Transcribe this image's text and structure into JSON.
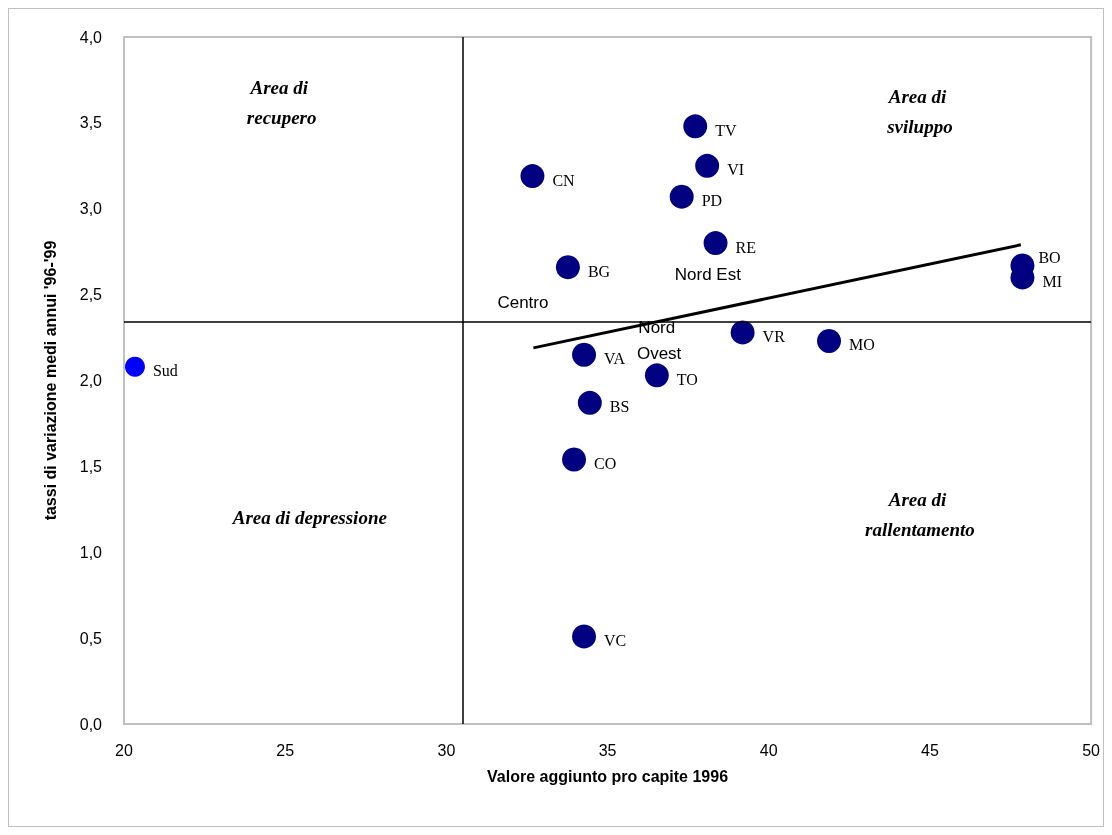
{
  "chart_data": {
    "type": "scatter",
    "xlabel": "Valore aggiunto pro capite 1996",
    "ylabel": "tassi di variazione medi annui '96-'99",
    "xlim": [
      20,
      50
    ],
    "xticks": [
      20,
      25,
      30,
      35,
      40,
      45,
      50
    ],
    "ylim": [
      0,
      4
    ],
    "yticks": [
      {
        "value": 0,
        "label": "0,0"
      },
      {
        "value": 0.5,
        "label": "0,5"
      },
      {
        "value": 1,
        "label": "1,0"
      },
      {
        "value": 1.5,
        "label": "1,5"
      },
      {
        "value": 2,
        "label": "2,0"
      },
      {
        "value": 2.5,
        "label": "2,5"
      },
      {
        "value": 3,
        "label": "3,0"
      },
      {
        "value": 3.5,
        "label": "3,5"
      },
      {
        "value": 4,
        "label": "4,0"
      }
    ],
    "grid": false,
    "legend": false,
    "marker": "circle",
    "series": [
      {
        "name": "TV",
        "color": "#000080",
        "x": [
          37.72
        ],
        "values": [
          3.48
        ]
      },
      {
        "name": "VI",
        "color": "#000080",
        "x": [
          38.09
        ],
        "values": [
          3.25
        ]
      },
      {
        "name": "CN",
        "color": "#000080",
        "x": [
          32.67
        ],
        "values": [
          3.19
        ]
      },
      {
        "name": "PD",
        "color": "#000080",
        "x": [
          37.3
        ],
        "values": [
          3.07
        ]
      },
      {
        "name": "RE",
        "color": "#000080",
        "x": [
          38.35
        ],
        "values": [
          2.8
        ]
      },
      {
        "name": "BG",
        "color": "#000080",
        "x": [
          33.77
        ],
        "values": [
          2.66
        ]
      },
      {
        "name": "BO",
        "color": "#000080",
        "x": [
          47.87
        ],
        "values": [
          2.67
        ]
      },
      {
        "name": "MI",
        "color": "#000080",
        "x": [
          47.87
        ],
        "values": [
          2.6
        ]
      },
      {
        "name": "VR",
        "color": "#000080",
        "x": [
          39.19
        ],
        "values": [
          2.28
        ]
      },
      {
        "name": "MO",
        "color": "#000080",
        "x": [
          41.87
        ],
        "values": [
          2.23
        ]
      },
      {
        "name": "VA",
        "color": "#000080",
        "x": [
          34.27
        ],
        "values": [
          2.15
        ]
      },
      {
        "name": "TO",
        "color": "#000080",
        "x": [
          36.53
        ],
        "values": [
          2.03
        ]
      },
      {
        "name": "BS",
        "color": "#000080",
        "x": [
          34.45
        ],
        "values": [
          1.87
        ]
      },
      {
        "name": "CO",
        "color": "#000080",
        "x": [
          33.96
        ],
        "values": [
          1.54
        ]
      },
      {
        "name": "VC",
        "color": "#000080",
        "x": [
          34.27
        ],
        "values": [
          0.51
        ]
      },
      {
        "name": "Sud",
        "color": "#0000ff",
        "x": [
          20.34
        ],
        "values": [
          2.08
        ]
      },
      {
        "type": "line",
        "color": "#000000",
        "line_style": "solid",
        "marker": "none",
        "x": [
          32.7,
          47.82
        ],
        "values": [
          2.19,
          2.79
        ]
      }
    ],
    "ref_lines": [
      {
        "axis": "x",
        "value": 30.5,
        "color": "#000000"
      },
      {
        "axis": "y",
        "value": 2.34,
        "color": "#000000"
      }
    ],
    "annotations": [
      "Centro",
      "Nord Est",
      "Nord Ovest",
      "Area di recupero",
      "Area di sviluppo",
      "Area di depressione",
      "Area di rallentamento"
    ]
  }
}
